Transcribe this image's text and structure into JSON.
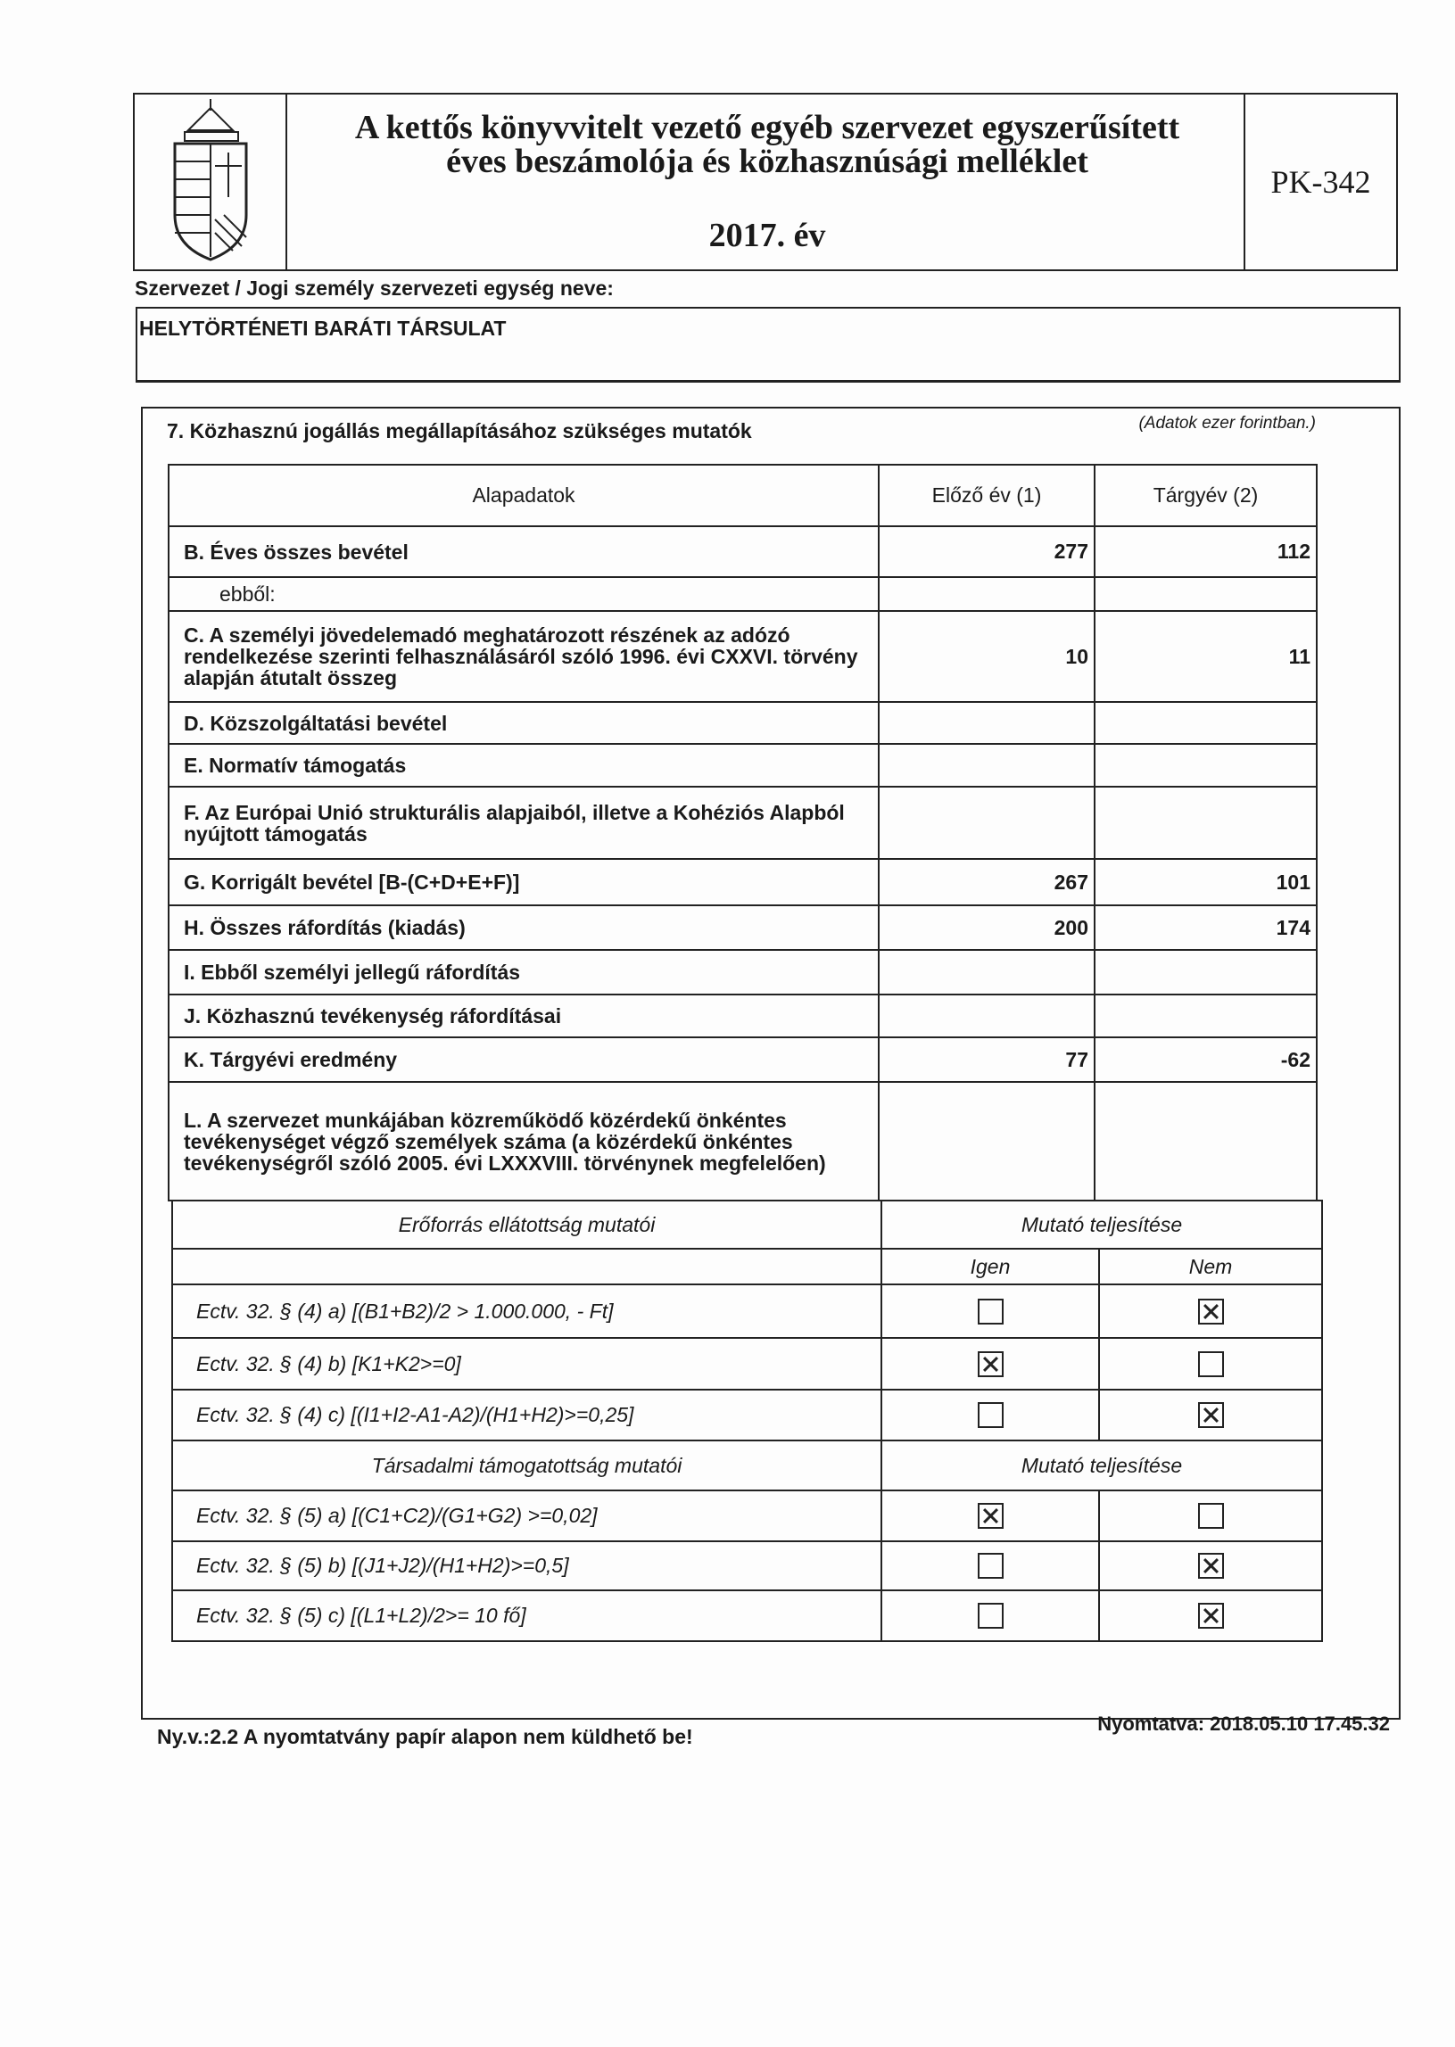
{
  "header": {
    "title_line1": "A kettős könyvvitelt vezető egyéb szervezet egyszerűsített",
    "title_line2": "éves beszámolója és közhasznúsági melléklet",
    "year": "2017. év",
    "form_code": "PK-342",
    "logo": "hungarian-coat-of-arms"
  },
  "organization": {
    "label": "Szervezet / Jogi személy szervezeti egység neve:",
    "name": "HELYTÖRTÉNETI BARÁTI TÁRSULAT"
  },
  "section": {
    "title": "7. Közhasznú jogállás megállapításához szükséges mutatók",
    "unit_note": "(Adatok ezer forintban.)",
    "columns": [
      "Alapadatok",
      "Előző év (1)",
      "Tárgyév (2)"
    ],
    "rows": [
      {
        "label": "B. Éves összes bevétel",
        "prev": "277",
        "curr": "112"
      },
      {
        "label": "ebből:",
        "prev": "",
        "curr": ""
      },
      {
        "label": "C. A személyi jövedelemadó meghatározott részének az adózó rendelkezése szerinti felhasználásáról szóló 1996. évi CXXVI. törvény alapján átutalt összeg",
        "prev": "10",
        "curr": "11"
      },
      {
        "label": "D. Közszolgáltatási bevétel",
        "prev": "",
        "curr": ""
      },
      {
        "label": "E. Normatív támogatás",
        "prev": "",
        "curr": ""
      },
      {
        "label": "F. Az Európai Unió strukturális alapjaiból, illetve a Kohéziós Alapból nyújtott támogatás",
        "prev": "",
        "curr": ""
      },
      {
        "label": "G. Korrigált bevétel [B-(C+D+E+F)]",
        "prev": "267",
        "curr": "101"
      },
      {
        "label": "H. Összes ráfordítás (kiadás)",
        "prev": "200",
        "curr": "174"
      },
      {
        "label": "I. Ebből személyi jellegű ráfordítás",
        "prev": "",
        "curr": ""
      },
      {
        "label": "J. Közhasznú tevékenység ráfordításai",
        "prev": "",
        "curr": ""
      },
      {
        "label": "K. Tárgyévi eredmény",
        "prev": "77",
        "curr": "-62"
      },
      {
        "label": "L. A szervezet munkájában közreműködő közérdekű önkéntes tevékenységet végző személyek száma (a közérdekű önkéntes tevékenységről szóló 2005. évi LXXXVIII. törvénynek megfelelően)",
        "prev": "",
        "curr": ""
      }
    ]
  },
  "resources": {
    "title": "Erőforrás ellátottság mutatói",
    "fulfillment": "Mutató teljesítése",
    "yes": "Igen",
    "no": "Nem",
    "items": [
      {
        "label": "Ectv. 32. § (4) a) [(B1+B2)/2 > 1.000.000, - Ft]",
        "yes": false,
        "no": true
      },
      {
        "label": "Ectv. 32. § (4) b) [K1+K2>=0]",
        "yes": true,
        "no": false
      },
      {
        "label": "Ectv. 32. § (4) c) [(I1+I2-A1-A2)/(H1+H2)>=0,25]",
        "yes": false,
        "no": true
      }
    ]
  },
  "social": {
    "title": "Társadalmi támogatottság mutatói",
    "fulfillment": "Mutató teljesítése",
    "items": [
      {
        "label": "Ectv. 32. § (5) a) [(C1+C2)/(G1+G2) >=0,02]",
        "yes": true,
        "no": false
      },
      {
        "label": "Ectv. 32. § (5) b) [(J1+J2)/(H1+H2)>=0,5]",
        "yes": false,
        "no": true
      },
      {
        "label": "Ectv. 32. § (5) c) [(L1+L2)/2>= 10 fő]",
        "yes": false,
        "no": true
      }
    ]
  },
  "footer": {
    "version_note": "Ny.v.:2.2 A nyomtatvány papír alapon nem küldhető be!",
    "printed": "Nyomtatva: 2018.05.10 17.45.32"
  }
}
